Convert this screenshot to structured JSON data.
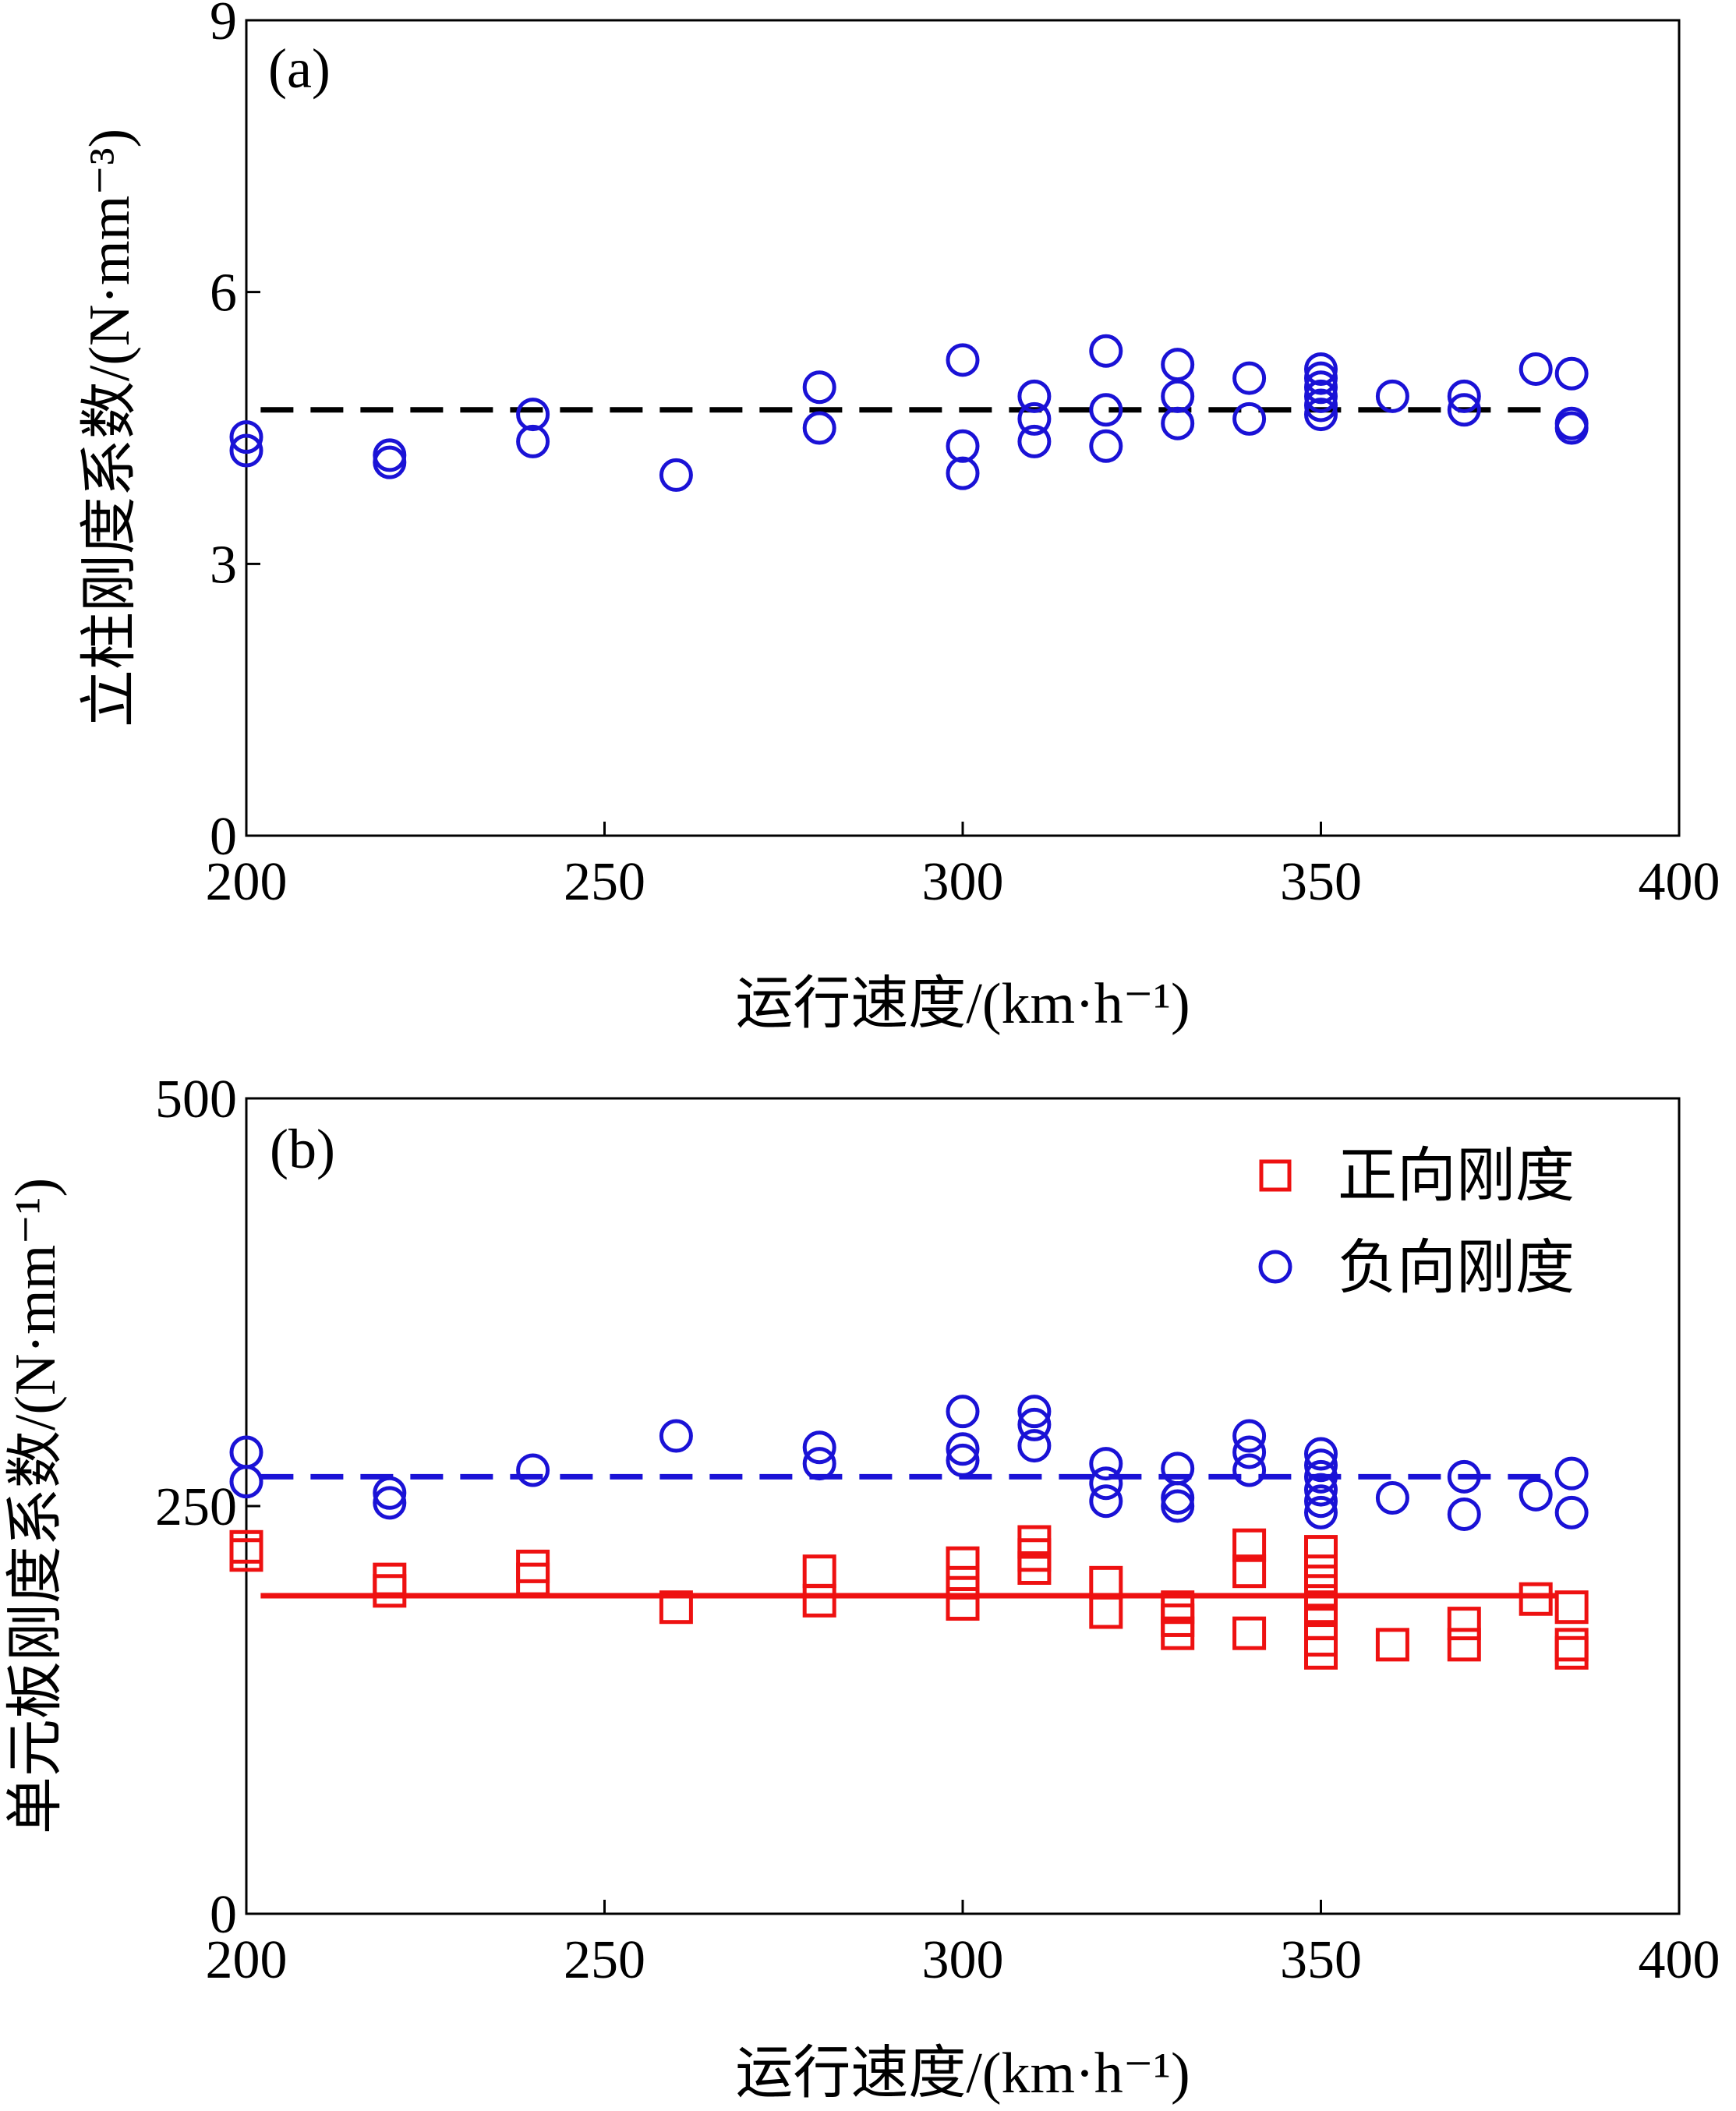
{
  "colors": {
    "axis": "#000000",
    "red": "#ee1111",
    "blue": "#1a12d6",
    "black": "#000000"
  },
  "chart_data": [
    {
      "type": "scatter",
      "panel_label": "(a)",
      "xlabel": "运行速度/(km·h⁻¹)",
      "ylabel": "立柱刚度系数/(N·mm⁻³)",
      "xlim": [
        200,
        400
      ],
      "ylim": [
        0,
        9
      ],
      "xticks": [
        "200",
        "250",
        "300",
        "350",
        "400"
      ],
      "yticks": [
        "0",
        "3",
        "6",
        "9"
      ],
      "xtick_values": [
        200,
        250,
        300,
        350,
        400
      ],
      "ytick_values": [
        0,
        3,
        6,
        9
      ],
      "series": [
        {
          "marker": "circle",
          "color": "#1a12d6",
          "points": [
            [
              200,
              4.4
            ],
            [
              200,
              4.25
            ],
            [
              220,
              4.2
            ],
            [
              220,
              4.12
            ],
            [
              240,
              4.65
            ],
            [
              240,
              4.35
            ],
            [
              260,
              3.98
            ],
            [
              280,
              4.95
            ],
            [
              280,
              4.5
            ],
            [
              300,
              5.25
            ],
            [
              300,
              4.3
            ],
            [
              300,
              4.0
            ],
            [
              310,
              4.85
            ],
            [
              310,
              4.6
            ],
            [
              310,
              4.35
            ],
            [
              320,
              5.35
            ],
            [
              320,
              4.7
            ],
            [
              320,
              4.3
            ],
            [
              330,
              5.2
            ],
            [
              330,
              4.85
            ],
            [
              330,
              4.55
            ],
            [
              340,
              5.05
            ],
            [
              340,
              4.6
            ],
            [
              350,
              5.15
            ],
            [
              350,
              5.05
            ],
            [
              350,
              4.95
            ],
            [
              350,
              4.85
            ],
            [
              350,
              4.75
            ],
            [
              350,
              4.65
            ],
            [
              360,
              4.85
            ],
            [
              370,
              4.85
            ],
            [
              370,
              4.7
            ],
            [
              380,
              5.15
            ],
            [
              385,
              5.1
            ],
            [
              385,
              4.55
            ],
            [
              385,
              4.5
            ]
          ]
        },
        {
          "line": "dashed",
          "color": "#000000",
          "x": [
            202,
            383
          ],
          "y": [
            4.7,
            4.7
          ]
        }
      ]
    },
    {
      "type": "scatter",
      "panel_label": "(b)",
      "xlabel": "运行速度/(km·h⁻¹)",
      "ylabel": "单元板刚度系数/(N·mm⁻¹)",
      "xlim": [
        200,
        400
      ],
      "ylim": [
        0,
        500
      ],
      "xticks": [
        "200",
        "250",
        "300",
        "350",
        "400"
      ],
      "yticks": [
        "0",
        "250",
        "500"
      ],
      "xtick_values": [
        200,
        250,
        300,
        350,
        400
      ],
      "ytick_values": [
        0,
        250,
        500
      ],
      "legend": {
        "position": "top-right",
        "entries": [
          "正向刚度",
          "负向刚度"
        ]
      },
      "series": [
        {
          "name": "正向刚度",
          "marker": "square",
          "color": "#ee1111",
          "points": [
            [
              200,
              225
            ],
            [
              200,
              220
            ],
            [
              220,
              205
            ],
            [
              220,
              198
            ],
            [
              240,
              213
            ],
            [
              240,
              205
            ],
            [
              260,
              188
            ],
            [
              280,
              210
            ],
            [
              280,
              192
            ],
            [
              300,
              215
            ],
            [
              300,
              203
            ],
            [
              300,
              190
            ],
            [
              310,
              228
            ],
            [
              310,
              220
            ],
            [
              310,
              212
            ],
            [
              320,
              203
            ],
            [
              320,
              185
            ],
            [
              330,
              188
            ],
            [
              330,
              180
            ],
            [
              330,
              172
            ],
            [
              340,
              226
            ],
            [
              340,
              210
            ],
            [
              340,
              172
            ],
            [
              350,
              222
            ],
            [
              350,
              210
            ],
            [
              350,
              198
            ],
            [
              350,
              188
            ],
            [
              350,
              178
            ],
            [
              350,
              168
            ],
            [
              350,
              160
            ],
            [
              360,
              165
            ],
            [
              370,
              178
            ],
            [
              370,
              165
            ],
            [
              380,
              193
            ],
            [
              385,
              188
            ],
            [
              385,
              165
            ],
            [
              385,
              160
            ]
          ]
        },
        {
          "name": "负向刚度",
          "marker": "circle",
          "color": "#1a12d6",
          "points": [
            [
              200,
              283
            ],
            [
              200,
              265
            ],
            [
              220,
              258
            ],
            [
              220,
              252
            ],
            [
              240,
              272
            ],
            [
              260,
              293
            ],
            [
              280,
              286
            ],
            [
              280,
              276
            ],
            [
              300,
              308
            ],
            [
              300,
              285
            ],
            [
              300,
              278
            ],
            [
              310,
              308
            ],
            [
              310,
              300
            ],
            [
              310,
              287
            ],
            [
              320,
              276
            ],
            [
              320,
              264
            ],
            [
              320,
              253
            ],
            [
              330,
              273
            ],
            [
              330,
              255
            ],
            [
              330,
              250
            ],
            [
              340,
              293
            ],
            [
              340,
              283
            ],
            [
              340,
              272
            ],
            [
              350,
              282
            ],
            [
              350,
              275
            ],
            [
              350,
              268
            ],
            [
              350,
              260
            ],
            [
              350,
              253
            ],
            [
              350,
              246
            ],
            [
              360,
              255
            ],
            [
              370,
              268
            ],
            [
              370,
              245
            ],
            [
              380,
              257
            ],
            [
              385,
              270
            ],
            [
              385,
              246
            ]
          ]
        },
        {
          "line": "dashed",
          "color": "#1a12d6",
          "x": [
            202,
            383
          ],
          "y": [
            268,
            268
          ]
        },
        {
          "line": "solid",
          "color": "#ee1111",
          "x": [
            202,
            383
          ],
          "y": [
            195,
            195
          ]
        }
      ]
    }
  ]
}
